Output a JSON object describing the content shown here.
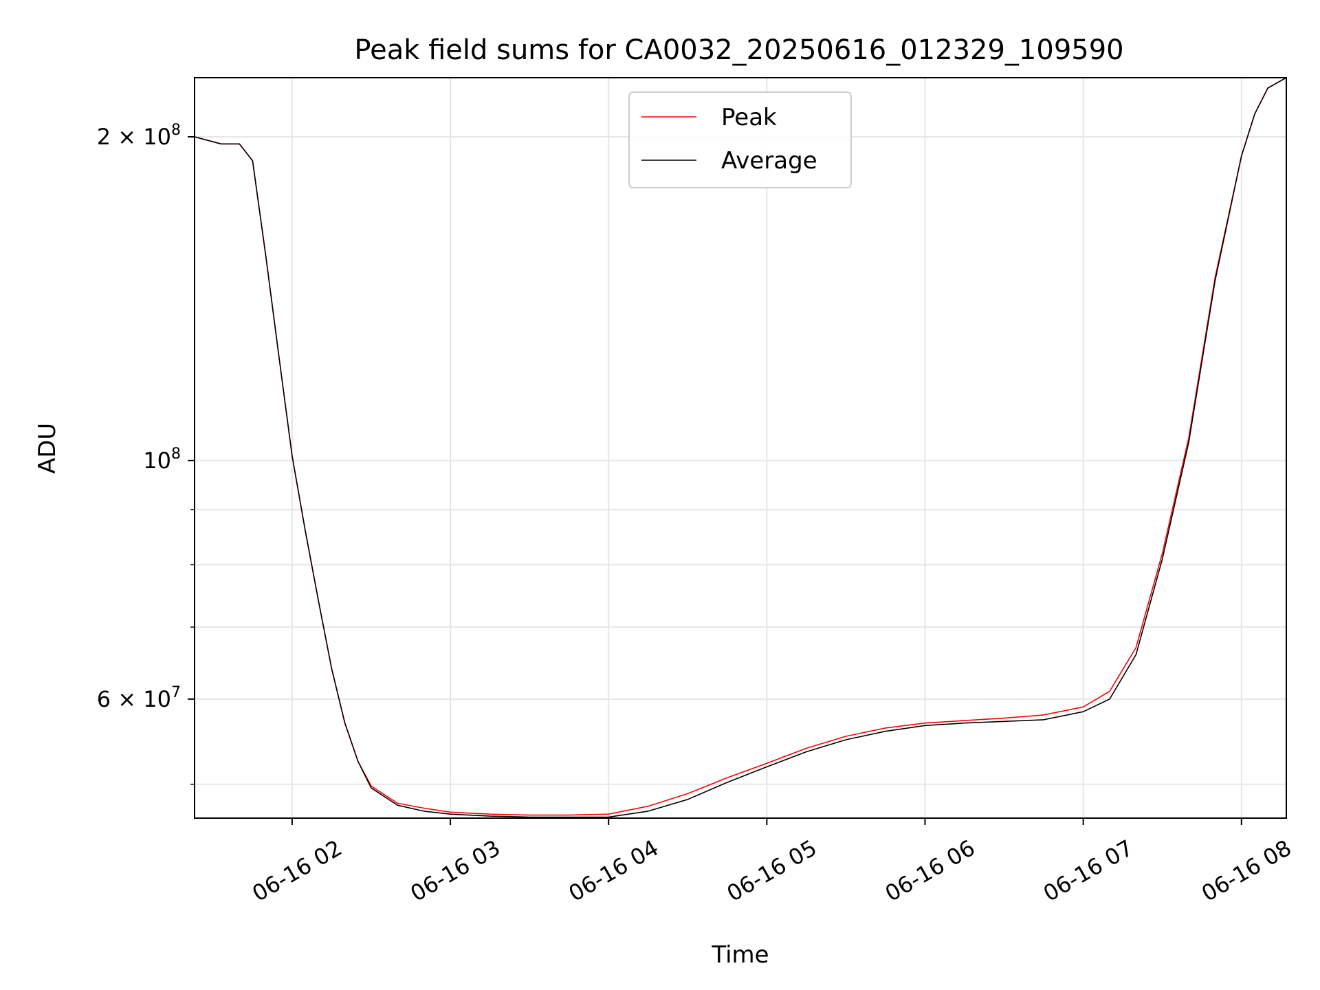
{
  "chart_data": {
    "type": "line",
    "title": "Peak field sums for CA0032_20250616_012329_109590",
    "xlabel": "Time",
    "ylabel": "ADU",
    "yscale": "log",
    "grid": true,
    "legend_position": "top-center",
    "xlim": [
      "2025-06-16 01:23",
      "2025-06-16 08:17"
    ],
    "ylim": [
      46500000,
      227000000
    ],
    "xticks": [
      {
        "t": "2025-06-16 02:00",
        "label": "06-16 02"
      },
      {
        "t": "2025-06-16 03:00",
        "label": "06-16 03"
      },
      {
        "t": "2025-06-16 04:00",
        "label": "06-16 04"
      },
      {
        "t": "2025-06-16 05:00",
        "label": "06-16 05"
      },
      {
        "t": "2025-06-16 06:00",
        "label": "06-16 06"
      },
      {
        "t": "2025-06-16 07:00",
        "label": "06-16 07"
      },
      {
        "t": "2025-06-16 08:00",
        "label": "06-16 08"
      }
    ],
    "yticks_major": [
      {
        "value": 60000000,
        "base": "6 × 10",
        "exp": "7"
      },
      {
        "value": 100000000,
        "base": "10",
        "exp": "8"
      },
      {
        "value": 200000000,
        "base": "2 × 10",
        "exp": "8"
      }
    ],
    "yticks_minor": [
      50000000,
      70000000,
      80000000,
      90000000
    ],
    "x": [
      "2025-06-16 01:23",
      "2025-06-16 01:33",
      "2025-06-16 01:40",
      "2025-06-16 01:45",
      "2025-06-16 01:50",
      "2025-06-16 01:55",
      "2025-06-16 02:00",
      "2025-06-16 02:05",
      "2025-06-16 02:10",
      "2025-06-16 02:15",
      "2025-06-16 02:20",
      "2025-06-16 02:25",
      "2025-06-16 02:30",
      "2025-06-16 02:40",
      "2025-06-16 02:50",
      "2025-06-16 03:00",
      "2025-06-16 03:15",
      "2025-06-16 03:30",
      "2025-06-16 03:45",
      "2025-06-16 04:00",
      "2025-06-16 04:15",
      "2025-06-16 04:30",
      "2025-06-16 04:45",
      "2025-06-16 05:00",
      "2025-06-16 05:15",
      "2025-06-16 05:30",
      "2025-06-16 05:45",
      "2025-06-16 06:00",
      "2025-06-16 06:15",
      "2025-06-16 06:30",
      "2025-06-16 06:45",
      "2025-06-16 07:00",
      "2025-06-16 07:10",
      "2025-06-16 07:20",
      "2025-06-16 07:30",
      "2025-06-16 07:40",
      "2025-06-16 07:50",
      "2025-06-16 08:00",
      "2025-06-16 08:05",
      "2025-06-16 08:10",
      "2025-06-16 08:17"
    ],
    "series": [
      {
        "name": "Peak",
        "color": "#ff0000",
        "values": [
          200000000,
          197000000,
          197000000,
          190000000,
          155000000,
          125000000,
          101000000,
          86000000,
          74000000,
          64000000,
          57000000,
          52500000,
          49800000,
          48000000,
          47500000,
          47100000,
          46900000,
          46800000,
          46800000,
          46900000,
          47700000,
          49000000,
          50700000,
          52300000,
          54000000,
          55400000,
          56400000,
          57000000,
          57300000,
          57600000,
          58000000,
          59000000,
          61000000,
          67000000,
          82000000,
          105000000,
          148000000,
          192000000,
          210000000,
          222000000,
          227000000
        ]
      },
      {
        "name": "Average",
        "color": "#000000",
        "values": [
          200000000,
          197000000,
          197000000,
          190000000,
          155000000,
          125000000,
          101000000,
          86000000,
          74000000,
          64000000,
          57000000,
          52500000,
          49600000,
          47800000,
          47200000,
          46900000,
          46700000,
          46600000,
          46600000,
          46600000,
          47200000,
          48400000,
          50200000,
          51900000,
          53600000,
          55000000,
          56000000,
          56700000,
          57000000,
          57200000,
          57400000,
          58400000,
          60000000,
          66000000,
          81000000,
          104000000,
          147000000,
          192000000,
          210000000,
          222000000,
          227000000
        ]
      }
    ]
  }
}
